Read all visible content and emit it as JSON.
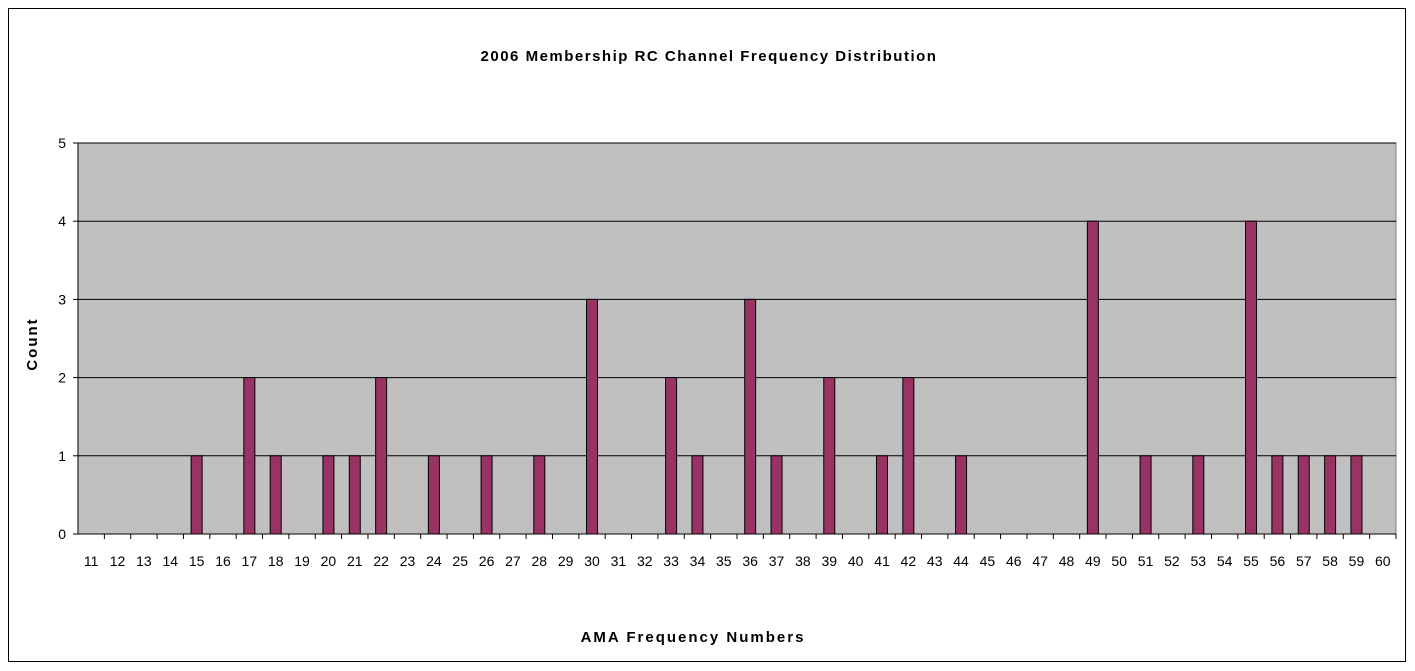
{
  "chart_data": {
    "type": "bar",
    "title": "2006 Membership RC Channel Frequency Distribution",
    "xlabel": "AMA Frequency Numbers",
    "ylabel": "Count",
    "ylim": [
      0,
      5
    ],
    "yticks": [
      0,
      1,
      2,
      3,
      4,
      5
    ],
    "grid": true,
    "legend": "none",
    "categories": [
      "11",
      "12",
      "13",
      "14",
      "15",
      "16",
      "17",
      "18",
      "19",
      "20",
      "21",
      "22",
      "23",
      "24",
      "25",
      "26",
      "27",
      "28",
      "29",
      "30",
      "31",
      "32",
      "33",
      "34",
      "35",
      "36",
      "37",
      "38",
      "39",
      "40",
      "41",
      "42",
      "43",
      "44",
      "45",
      "46",
      "47",
      "48",
      "49",
      "50",
      "51",
      "52",
      "53",
      "54",
      "55",
      "56",
      "57",
      "58",
      "59",
      "60"
    ],
    "series": [
      {
        "values": [
          0,
          0,
          0,
          0,
          1,
          0,
          2,
          1,
          0,
          1,
          1,
          2,
          0,
          1,
          0,
          1,
          0,
          1,
          0,
          3,
          0,
          0,
          2,
          1,
          0,
          3,
          1,
          0,
          2,
          0,
          1,
          2,
          0,
          1,
          0,
          0,
          0,
          0,
          4,
          0,
          1,
          0,
          1,
          0,
          4,
          1,
          1,
          1,
          1,
          0
        ]
      }
    ],
    "colors": {
      "bar_fill": "#993366",
      "bar_stroke": "#000000",
      "plot_background": "#c0c0c0",
      "gridline": "#000000"
    }
  }
}
